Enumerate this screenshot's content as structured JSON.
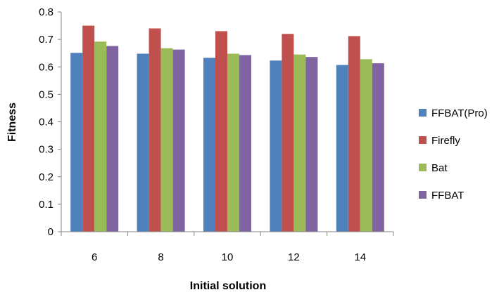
{
  "chart_data": {
    "type": "bar",
    "title": "",
    "xlabel": "Initial solution",
    "ylabel": "Fitness",
    "categories": [
      "6",
      "8",
      "10",
      "12",
      "14"
    ],
    "ylim": [
      0,
      0.8
    ],
    "yticks": [
      "0",
      "0.1",
      "0.2",
      "0.3",
      "0.4",
      "0.5",
      "0.6",
      "0.7",
      "0.8"
    ],
    "grid": false,
    "legend_position": "right",
    "series": [
      {
        "name": "FFBAT(Pro)",
        "color": "#4F81BD",
        "values": [
          0.651,
          0.648,
          0.633,
          0.623,
          0.607
        ]
      },
      {
        "name": "Firefly",
        "color": "#C0504D",
        "values": [
          0.75,
          0.74,
          0.73,
          0.72,
          0.712
        ]
      },
      {
        "name": "Bat",
        "color": "#9BBB59",
        "values": [
          0.692,
          0.668,
          0.648,
          0.645,
          0.628
        ]
      },
      {
        "name": "FFBAT",
        "color": "#8064A2",
        "values": [
          0.676,
          0.663,
          0.643,
          0.636,
          0.613
        ]
      }
    ]
  }
}
